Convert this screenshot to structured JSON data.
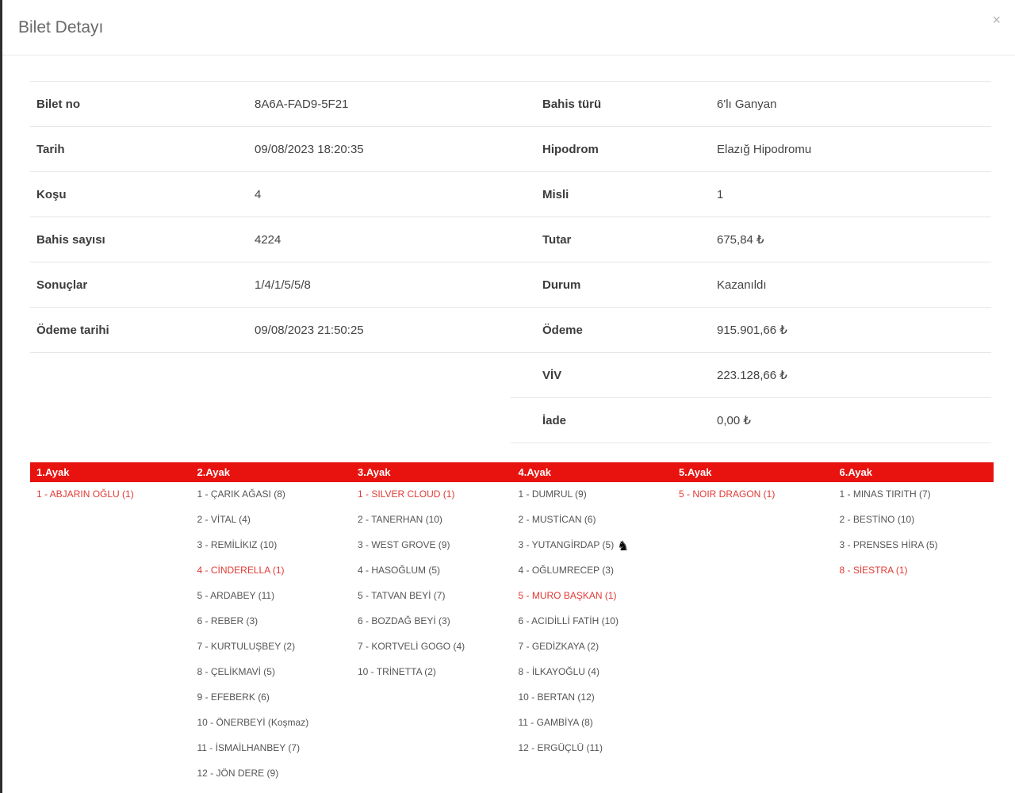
{
  "modal": {
    "title": "Bilet Detayı",
    "close_icon": "×"
  },
  "colors": {
    "leg_header_red": "#e8120e",
    "pick_highlight_red": "#e03a35"
  },
  "icons": {
    "horse": "♞"
  },
  "details": {
    "left": [
      {
        "label": "Bilet no",
        "value": "8A6A-FAD9-5F21"
      },
      {
        "label": "Tarih",
        "value": "09/08/2023 18:20:35"
      },
      {
        "label": "Koşu",
        "value": "4"
      },
      {
        "label": "Bahis sayısı",
        "value": "4224"
      },
      {
        "label": "Sonuçlar",
        "value": "1/4/1/5/5/8"
      },
      {
        "label": "Ödeme tarihi",
        "value": "09/08/2023 21:50:25"
      }
    ],
    "right": [
      {
        "label": "Bahis türü",
        "value": "6'lı Ganyan"
      },
      {
        "label": "Hipodrom",
        "value": "Elazığ Hipodromu"
      },
      {
        "label": "Misli",
        "value": "1"
      },
      {
        "label": "Tutar",
        "value": "675,84 ₺"
      },
      {
        "label": "Durum",
        "value": "Kazanıldı"
      },
      {
        "label": "Ödeme",
        "value": "915.901,66 ₺"
      },
      {
        "label": "VİV",
        "value": "223.128,66 ₺"
      },
      {
        "label": "İade",
        "value": "0,00 ₺"
      }
    ]
  },
  "legs": {
    "columns": [
      {
        "title": "1.Ayak",
        "horses": [
          {
            "text": "1 - ABJARIN OĞLU (1)",
            "highlight": true
          }
        ]
      },
      {
        "title": "2.Ayak",
        "horses": [
          {
            "text": "1 - ÇARIK AĞASI (8)",
            "highlight": false
          },
          {
            "text": "2 - VİTAL (4)",
            "highlight": false
          },
          {
            "text": "3 - REMİLİKIZ (10)",
            "highlight": false
          },
          {
            "text": "4 - CİNDERELLA (1)",
            "highlight": true
          },
          {
            "text": "5 - ARDABEY (11)",
            "highlight": false
          },
          {
            "text": "6 - REBER (3)",
            "highlight": false
          },
          {
            "text": "7 - KURTULUŞBEY (2)",
            "highlight": false
          },
          {
            "text": "8 - ÇELİKMAVİ (5)",
            "highlight": false
          },
          {
            "text": "9 - EFEBERK (6)",
            "highlight": false
          },
          {
            "text": "10 - ÖNERBEYİ (Koşmaz)",
            "highlight": false
          },
          {
            "text": "11 - İSMAİLHANBEY (7)",
            "highlight": false
          },
          {
            "text": "12 - JÖN DERE (9)",
            "highlight": false
          }
        ]
      },
      {
        "title": "3.Ayak",
        "horses": [
          {
            "text": "1 - SILVER CLOUD (1)",
            "highlight": true
          },
          {
            "text": "2 - TANERHAN (10)",
            "highlight": false
          },
          {
            "text": "3 - WEST GROVE (9)",
            "highlight": false
          },
          {
            "text": "4 - HASOĞLUM (5)",
            "highlight": false
          },
          {
            "text": "5 - TATVAN BEYİ (7)",
            "highlight": false
          },
          {
            "text": "6 - BOZDAĞ BEYİ (3)",
            "highlight": false
          },
          {
            "text": "7 - KORTVELİ GOGO (4)",
            "highlight": false
          },
          {
            "text": "10 - TRİNETTA (2)",
            "highlight": false
          }
        ]
      },
      {
        "title": "4.Ayak",
        "horses": [
          {
            "text": "1 - DUMRUL (9)",
            "highlight": false
          },
          {
            "text": "2 - MUSTİCAN (6)",
            "highlight": false
          },
          {
            "text": "3 - YUTANGİRDAP (5)",
            "highlight": false,
            "icon": "horse"
          },
          {
            "text": "4 - OĞLUMRECEP (3)",
            "highlight": false
          },
          {
            "text": "5 - MURO BAŞKAN (1)",
            "highlight": true
          },
          {
            "text": "6 - ACIDİLLİ FATİH (10)",
            "highlight": false
          },
          {
            "text": "7 - GEDİZKAYA (2)",
            "highlight": false
          },
          {
            "text": "8 - İLKAYOĞLU (4)",
            "highlight": false
          },
          {
            "text": "10 - BERTAN (12)",
            "highlight": false
          },
          {
            "text": "11 - GAMBİYA (8)",
            "highlight": false
          },
          {
            "text": "12 - ERGÜÇLÜ (11)",
            "highlight": false
          }
        ]
      },
      {
        "title": "5.Ayak",
        "horses": [
          {
            "text": "5 - NOIR DRAGON (1)",
            "highlight": true
          }
        ]
      },
      {
        "title": "6.Ayak",
        "horses": [
          {
            "text": "1 - MINAS TIRITH (7)",
            "highlight": false
          },
          {
            "text": "2 - BESTİNO (10)",
            "highlight": false
          },
          {
            "text": "3 - PRENSES HİRA (5)",
            "highlight": false
          },
          {
            "text": "8 - SİESTRA (1)",
            "highlight": true
          }
        ]
      }
    ]
  }
}
